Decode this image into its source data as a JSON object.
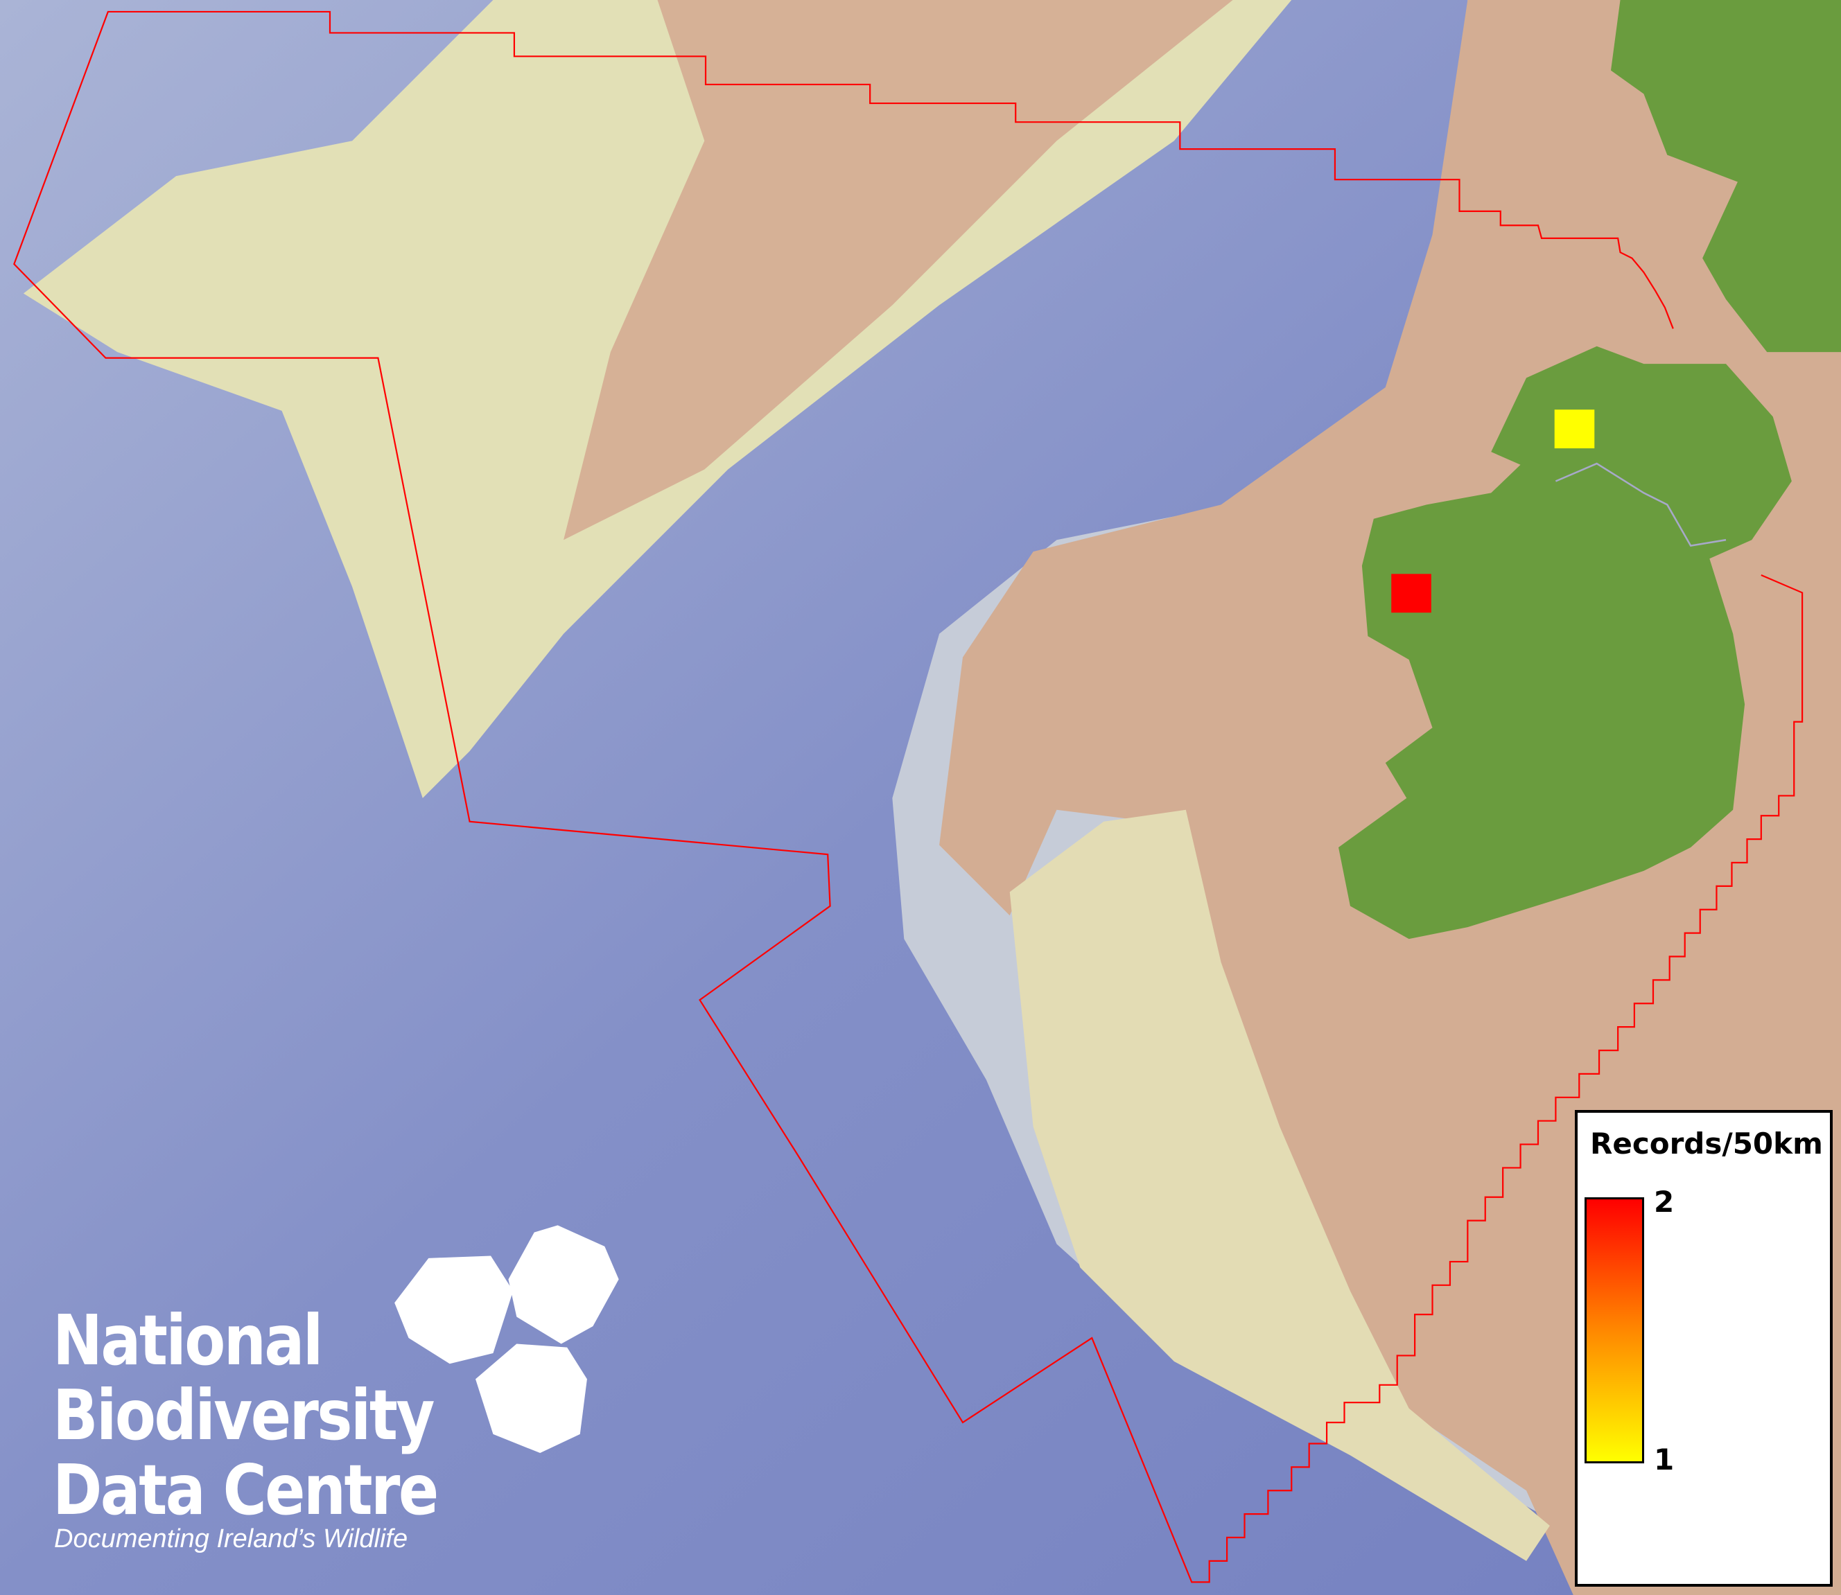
{
  "map": {
    "colors": {
      "deep_ocean": "#7f8cc4",
      "shelf_slope": "#c9cfd6",
      "shelf_shallow": "#e4e2b8",
      "shelf_tan": "#d4ae92",
      "land": "#6a9c3e",
      "boundary": "#ff0000",
      "border_line": "#a7a9c9"
    },
    "records": [
      {
        "place": "north-west Donegal",
        "count": 1,
        "color": "#ffff00"
      },
      {
        "place": "west Mayo",
        "count": 2,
        "color": "#ff0000"
      }
    ]
  },
  "legend": {
    "title": "Records/50km",
    "max_label": "2",
    "min_label": "1",
    "gradient_top": "#ff0000",
    "gradient_mid": "#ff8800",
    "gradient_bottom": "#ffff00"
  },
  "logo": {
    "line1": "National",
    "line2": "Biodiversity",
    "line3": "Data Centre",
    "tagline": "Documenting Ireland’s Wildlife",
    "icons": [
      "tree-icon",
      "butterfly-icon",
      "seahorse-icon"
    ]
  }
}
